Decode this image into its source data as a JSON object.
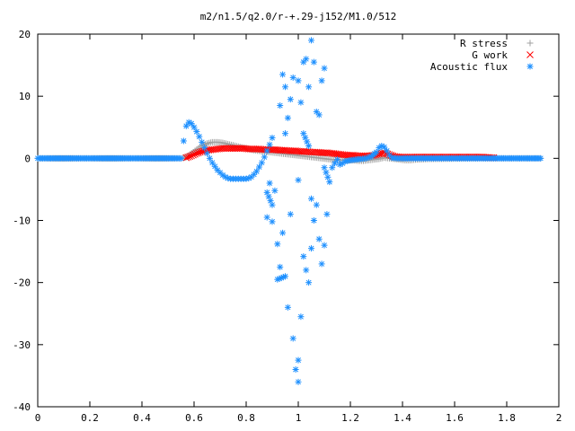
{
  "chart_data": {
    "type": "scatter",
    "title": "m2/n1.5/q2.0/r-+.29-j152/M1.0/512",
    "xlabel": "",
    "ylabel": "",
    "xlim": [
      0,
      2
    ],
    "ylim": [
      -40,
      20
    ],
    "xticks": [
      "0",
      "0.2",
      "0.4",
      "0.6",
      "0.8",
      "1",
      "1.2",
      "1.4",
      "1.6",
      "1.8",
      "2"
    ],
    "yticks": [
      "20",
      "10",
      "0",
      "-10",
      "-20",
      "-30",
      "-40"
    ],
    "grid": false,
    "legend_position": "top-right",
    "series": [
      {
        "name": "R stress",
        "marker": "+",
        "color": "#a0a0a0",
        "points": [
          [
            0.0,
            0
          ],
          [
            0.55,
            0
          ],
          [
            0.57,
            0.2
          ],
          [
            0.59,
            0.8
          ],
          [
            0.61,
            1.4
          ],
          [
            0.63,
            2.0
          ],
          [
            0.65,
            2.4
          ],
          [
            0.67,
            2.6
          ],
          [
            0.69,
            2.6
          ],
          [
            0.71,
            2.5
          ],
          [
            0.73,
            2.3
          ],
          [
            0.75,
            2.1
          ],
          [
            0.77,
            1.9
          ],
          [
            0.79,
            1.7
          ],
          [
            0.81,
            1.5
          ],
          [
            0.83,
            1.3
          ],
          [
            0.85,
            1.2
          ],
          [
            0.87,
            1.1
          ],
          [
            0.89,
            1.0
          ],
          [
            0.91,
            0.9
          ],
          [
            0.93,
            0.8
          ],
          [
            0.95,
            0.7
          ],
          [
            0.97,
            0.6
          ],
          [
            0.99,
            0.5
          ],
          [
            1.01,
            0.4
          ],
          [
            1.03,
            0.3
          ],
          [
            1.05,
            0.2
          ],
          [
            1.07,
            0.1
          ],
          [
            1.09,
            0.0
          ],
          [
            1.11,
            -0.1
          ],
          [
            1.13,
            -0.2
          ],
          [
            1.15,
            -0.2
          ],
          [
            1.17,
            -0.3
          ],
          [
            1.19,
            -0.3
          ],
          [
            1.21,
            -0.3
          ],
          [
            1.23,
            -0.4
          ],
          [
            1.25,
            -0.4
          ],
          [
            1.27,
            -0.3
          ],
          [
            1.29,
            -0.2
          ],
          [
            1.31,
            -0.1
          ],
          [
            1.33,
            0.1
          ],
          [
            1.35,
            0.0
          ],
          [
            1.37,
            -0.1
          ],
          [
            1.39,
            -0.2
          ],
          [
            1.41,
            -0.3
          ],
          [
            1.43,
            -0.3
          ],
          [
            1.45,
            -0.2
          ],
          [
            1.5,
            -0.1
          ],
          [
            1.6,
            -0.05
          ],
          [
            1.7,
            0.0
          ],
          [
            1.8,
            0.0
          ],
          [
            1.93,
            0.0
          ]
        ]
      },
      {
        "name": "G work",
        "marker": "x",
        "color": "#ff0000",
        "points": [
          [
            0.57,
            0.1
          ],
          [
            0.59,
            0.4
          ],
          [
            0.61,
            0.8
          ],
          [
            0.63,
            1.1
          ],
          [
            0.65,
            1.3
          ],
          [
            0.67,
            1.4
          ],
          [
            0.69,
            1.5
          ],
          [
            0.71,
            1.6
          ],
          [
            0.73,
            1.6
          ],
          [
            0.75,
            1.6
          ],
          [
            0.77,
            1.6
          ],
          [
            0.79,
            1.6
          ],
          [
            0.81,
            1.5
          ],
          [
            0.83,
            1.5
          ],
          [
            0.85,
            1.5
          ],
          [
            0.87,
            1.4
          ],
          [
            0.89,
            1.4
          ],
          [
            0.91,
            1.4
          ],
          [
            0.93,
            1.3
          ],
          [
            0.95,
            1.3
          ],
          [
            0.97,
            1.2
          ],
          [
            0.99,
            1.2
          ],
          [
            1.01,
            1.1
          ],
          [
            1.03,
            1.1
          ],
          [
            1.05,
            1.0
          ],
          [
            1.07,
            1.0
          ],
          [
            1.09,
            0.9
          ],
          [
            1.11,
            0.9
          ],
          [
            1.13,
            0.8
          ],
          [
            1.15,
            0.7
          ],
          [
            1.17,
            0.6
          ],
          [
            1.19,
            0.5
          ],
          [
            1.21,
            0.5
          ],
          [
            1.23,
            0.4
          ],
          [
            1.25,
            0.4
          ],
          [
            1.27,
            0.4
          ],
          [
            1.29,
            0.5
          ],
          [
            1.31,
            0.7
          ],
          [
            1.33,
            0.9
          ],
          [
            1.35,
            0.6
          ],
          [
            1.37,
            0.3
          ],
          [
            1.39,
            0.2
          ],
          [
            1.41,
            0.2
          ],
          [
            1.45,
            0.2
          ],
          [
            1.5,
            0.2
          ],
          [
            1.55,
            0.2
          ],
          [
            1.6,
            0.2
          ],
          [
            1.65,
            0.2
          ],
          [
            1.7,
            0.2
          ],
          [
            1.75,
            0.1
          ]
        ]
      },
      {
        "name": "Acoustic flux",
        "marker": "*",
        "color": "#1e90ff",
        "points": [
          [
            0.0,
            0
          ],
          [
            0.1,
            0
          ],
          [
            0.2,
            0
          ],
          [
            0.3,
            0
          ],
          [
            0.4,
            0
          ],
          [
            0.5,
            0
          ],
          [
            0.55,
            0
          ],
          [
            0.56,
            2.8
          ],
          [
            0.57,
            5.2
          ],
          [
            0.58,
            5.8
          ],
          [
            0.59,
            5.6
          ],
          [
            0.6,
            5.0
          ],
          [
            0.61,
            4.3
          ],
          [
            0.62,
            3.5
          ],
          [
            0.63,
            2.6
          ],
          [
            0.64,
            1.7
          ],
          [
            0.65,
            0.8
          ],
          [
            0.66,
            0.0
          ],
          [
            0.67,
            -0.7
          ],
          [
            0.68,
            -1.3
          ],
          [
            0.69,
            -1.9
          ],
          [
            0.7,
            -2.3
          ],
          [
            0.71,
            -2.7
          ],
          [
            0.72,
            -3.0
          ],
          [
            0.73,
            -3.2
          ],
          [
            0.74,
            -3.3
          ],
          [
            0.75,
            -3.3
          ],
          [
            0.76,
            -3.3
          ],
          [
            0.77,
            -3.3
          ],
          [
            0.78,
            -3.3
          ],
          [
            0.79,
            -3.3
          ],
          [
            0.8,
            -3.3
          ],
          [
            0.81,
            -3.2
          ],
          [
            0.82,
            -3.0
          ],
          [
            0.83,
            -2.6
          ],
          [
            0.84,
            -2.1
          ],
          [
            0.85,
            -1.4
          ],
          [
            0.86,
            -0.7
          ],
          [
            0.87,
            0.2
          ],
          [
            0.88,
            1.2
          ],
          [
            0.89,
            2.2
          ],
          [
            0.9,
            3.3
          ],
          [
            0.89,
            -4.0
          ],
          [
            0.88,
            -5.5
          ],
          [
            0.9,
            -7.5
          ],
          [
            0.88,
            -9.5
          ],
          [
            0.91,
            -5.2
          ],
          [
            0.9,
            -10.2
          ],
          [
            0.92,
            -13.8
          ],
          [
            0.93,
            -17.5
          ],
          [
            0.94,
            -12.0
          ],
          [
            0.92,
            -19.5
          ],
          [
            0.95,
            -19.0
          ],
          [
            0.93,
            8.5
          ],
          [
            0.94,
            13.5
          ],
          [
            0.95,
            11.5
          ],
          [
            0.96,
            6.5
          ],
          [
            0.95,
            4.0
          ],
          [
            0.97,
            9.5
          ],
          [
            0.98,
            13.0
          ],
          [
            0.97,
            -9.0
          ],
          [
            0.96,
            -24.0
          ],
          [
            0.98,
            -29.0
          ],
          [
            0.99,
            -34.0
          ],
          [
            1.0,
            -36.0
          ],
          [
            1.0,
            -32.5
          ],
          [
            1.01,
            -25.5
          ],
          [
            1.02,
            -15.8
          ],
          [
            1.0,
            12.5
          ],
          [
            1.01,
            9.0
          ],
          [
            1.02,
            15.5
          ],
          [
            1.03,
            16.0
          ],
          [
            1.04,
            11.5
          ],
          [
            1.05,
            19.0
          ],
          [
            1.03,
            -18.0
          ],
          [
            1.04,
            -20.0
          ],
          [
            1.05,
            -14.5
          ],
          [
            1.06,
            15.5
          ],
          [
            1.07,
            7.5
          ],
          [
            1.06,
            -10.0
          ],
          [
            1.07,
            -7.5
          ],
          [
            1.08,
            -13.0
          ],
          [
            1.09,
            -17.0
          ],
          [
            1.1,
            -14.0
          ],
          [
            1.08,
            7.0
          ],
          [
            1.09,
            12.5
          ],
          [
            1.1,
            14.5
          ],
          [
            1.11,
            -9.0
          ],
          [
            1.05,
            -6.5
          ],
          [
            1.0,
            -3.5
          ],
          [
            1.02,
            4.0
          ],
          [
            1.04,
            2.0
          ],
          [
            1.1,
            -1.5
          ],
          [
            1.12,
            -3.8
          ],
          [
            1.13,
            -1.5
          ],
          [
            1.14,
            -0.8
          ],
          [
            1.15,
            -0.2
          ],
          [
            1.16,
            -1.0
          ],
          [
            1.17,
            -0.8
          ],
          [
            1.18,
            -0.5
          ],
          [
            1.2,
            -0.3
          ],
          [
            1.22,
            -0.2
          ],
          [
            1.24,
            -0.1
          ],
          [
            1.26,
            0
          ],
          [
            1.28,
            0.3
          ],
          [
            1.3,
            1.0
          ],
          [
            1.31,
            1.7
          ],
          [
            1.32,
            2.0
          ],
          [
            1.33,
            1.8
          ],
          [
            1.34,
            1.2
          ],
          [
            1.35,
            0.5
          ],
          [
            1.36,
            0.1
          ],
          [
            1.38,
            0
          ],
          [
            1.4,
            0
          ],
          [
            1.5,
            0
          ],
          [
            1.6,
            0
          ],
          [
            1.7,
            0
          ],
          [
            1.8,
            0
          ],
          [
            1.9,
            0
          ],
          [
            1.93,
            0
          ]
        ]
      }
    ]
  }
}
